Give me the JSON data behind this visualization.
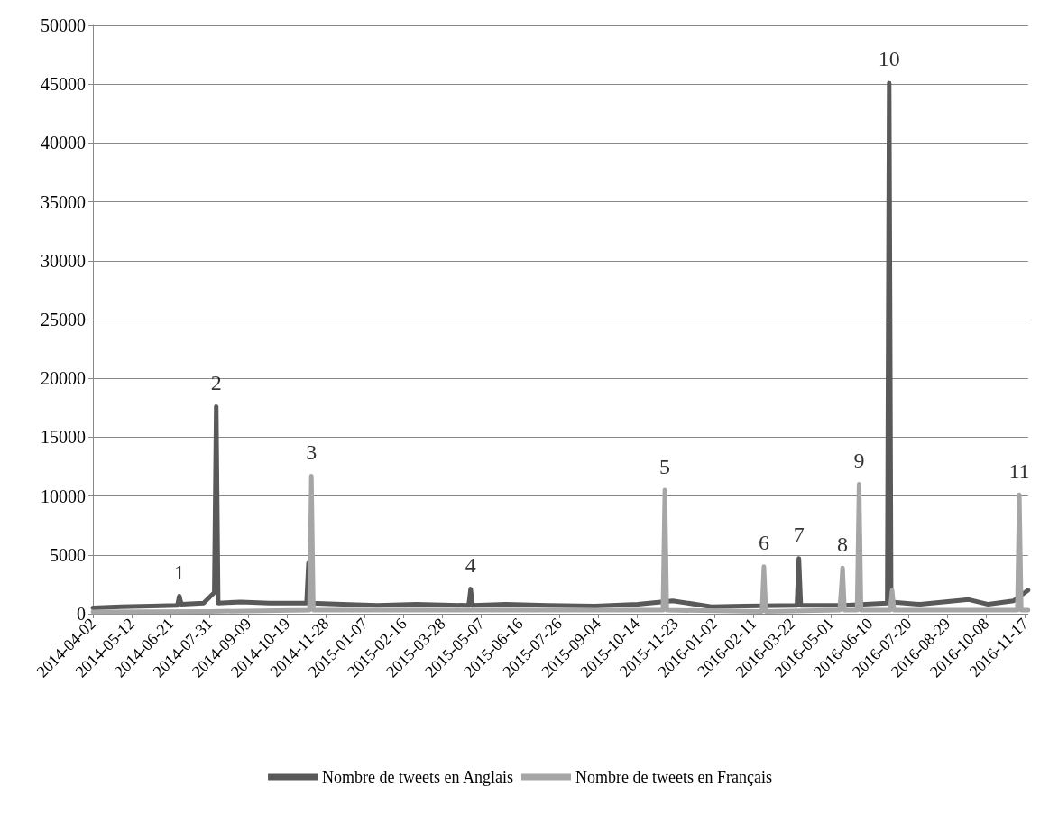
{
  "chart_data": {
    "type": "line",
    "legend": "bottom",
    "grid": "y",
    "marker": "none",
    "line_style": "solid",
    "xlim": [
      "2014-04-02",
      "2016-11-20"
    ],
    "xticks": [
      "2014-04-02",
      "2014-05-12",
      "2014-06-21",
      "2014-07-31",
      "2014-09-09",
      "2014-10-19",
      "2014-11-28",
      "2015-01-07",
      "2015-02-16",
      "2015-03-28",
      "2015-05-07",
      "2015-06-16",
      "2015-07-26",
      "2015-09-04",
      "2015-10-14",
      "2015-11-23",
      "2016-01-02",
      "2016-02-11",
      "2016-03-22",
      "2016-05-01",
      "2016-06-10",
      "2016-07-20",
      "2016-08-29",
      "2016-10-08",
      "2016-11-17"
    ],
    "ylim": [
      0,
      50000
    ],
    "yticks": [
      0,
      5000,
      10000,
      15000,
      20000,
      25000,
      30000,
      35000,
      40000,
      45000,
      50000
    ],
    "series": [
      {
        "name": "Nombre de tweets en Anglais",
        "color": "#595959",
        "x": [
          "2014-04-02",
          "2014-05-01",
          "2014-06-01",
          "2014-06-28",
          "2014-06-30",
          "2014-07-02",
          "2014-07-25",
          "2014-08-05",
          "2014-08-07",
          "2014-08-09",
          "2014-09-01",
          "2014-10-01",
          "2014-11-08",
          "2014-11-10",
          "2014-11-12",
          "2014-12-15",
          "2015-01-20",
          "2015-03-01",
          "2015-04-24",
          "2015-04-26",
          "2015-04-28",
          "2015-06-01",
          "2015-07-15",
          "2015-09-01",
          "2015-10-15",
          "2015-11-20",
          "2015-12-30",
          "2016-02-01",
          "2016-03-27",
          "2016-03-29",
          "2016-03-31",
          "2016-05-10",
          "2016-06-28",
          "2016-06-30",
          "2016-07-02",
          "2016-08-01",
          "2016-09-20",
          "2016-10-10",
          "2016-11-05",
          "2016-11-20"
        ],
        "values": [
          500,
          600,
          650,
          700,
          1500,
          800,
          900,
          1800,
          17600,
          900,
          1000,
          900,
          900,
          4300,
          900,
          800,
          700,
          800,
          700,
          2100,
          700,
          800,
          700,
          650,
          800,
          1100,
          600,
          650,
          700,
          4700,
          700,
          700,
          900,
          45100,
          1000,
          800,
          1200,
          800,
          1100,
          2000
        ]
      },
      {
        "name": "Nombre de tweets en Français",
        "color": "#a6a6a6",
        "x": [
          "2014-04-02",
          "2014-08-01",
          "2014-11-11",
          "2014-11-13",
          "2014-11-15",
          "2015-11-10",
          "2015-11-12",
          "2015-11-14",
          "2016-02-20",
          "2016-02-22",
          "2016-02-24",
          "2016-05-10",
          "2016-05-12",
          "2016-05-13",
          "2016-05-15",
          "2016-05-28",
          "2016-05-30",
          "2016-06-01",
          "2016-07-01",
          "2016-07-03",
          "2016-07-05",
          "2016-11-09",
          "2016-11-11",
          "2016-11-13",
          "2016-11-20"
        ],
        "values": [
          150,
          200,
          300,
          11700,
          300,
          300,
          10500,
          300,
          200,
          4000,
          200,
          300,
          2500,
          3900,
          300,
          300,
          11000,
          300,
          300,
          2000,
          300,
          300,
          10100,
          300,
          300
        ]
      }
    ],
    "annotations": [
      {
        "text": "1",
        "x": "2014-06-30",
        "y": 1500
      },
      {
        "text": "2",
        "x": "2014-08-07",
        "y": 17600
      },
      {
        "text": "3",
        "x": "2014-11-13",
        "y": 11700
      },
      {
        "text": "4",
        "x": "2015-04-26",
        "y": 2100
      },
      {
        "text": "5",
        "x": "2015-11-12",
        "y": 10500
      },
      {
        "text": "6",
        "x": "2016-02-22",
        "y": 4000
      },
      {
        "text": "7",
        "x": "2016-03-29",
        "y": 4700
      },
      {
        "text": "8",
        "x": "2016-05-13",
        "y": 3900
      },
      {
        "text": "9",
        "x": "2016-05-30",
        "y": 11000
      },
      {
        "text": "10",
        "x": "2016-06-30",
        "y": 45100
      },
      {
        "text": "11",
        "x": "2016-11-11",
        "y": 10100
      }
    ]
  }
}
